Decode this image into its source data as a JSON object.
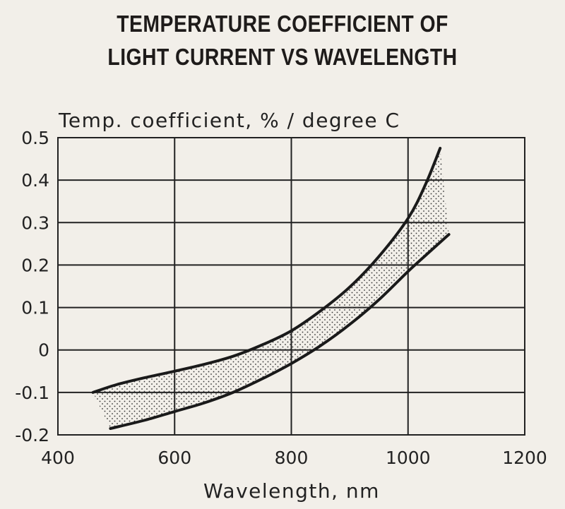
{
  "chart_data": {
    "type": "area",
    "title": [
      "TEMPERATURE COEFFICIENT OF",
      "LIGHT CURRENT VS WAVELENGTH"
    ],
    "ylabel": "Temp. coefficient, % / degree C",
    "xlabel": "Wavelength, nm",
    "xlim": [
      400,
      1200
    ],
    "ylim": [
      -0.2,
      0.5
    ],
    "xticks": [
      400,
      600,
      800,
      1000,
      1200
    ],
    "xtick_labels": [
      "400",
      "600",
      "800",
      "1000",
      "1200"
    ],
    "yticks": [
      0.5,
      0.4,
      0.3,
      0.2,
      0.1,
      0,
      -0.1,
      -0.2
    ],
    "ytick_labels": [
      "0.5",
      "0.4",
      "0.3",
      "0.2",
      "0.1",
      "0",
      "-0.1",
      "-0.2"
    ],
    "grid": true,
    "band_fill": "dotted",
    "series": [
      {
        "x": [
          460,
          500,
          550,
          600,
          650,
          700,
          750,
          800,
          850,
          900,
          950,
          1000,
          1030,
          1055
        ],
        "y": [
          -0.1,
          -0.082,
          -0.065,
          -0.05,
          -0.034,
          -0.015,
          0.012,
          0.045,
          0.092,
          0.148,
          0.22,
          0.31,
          0.39,
          0.475
        ]
      },
      {
        "x": [
          490,
          550,
          600,
          650,
          700,
          750,
          800,
          850,
          900,
          950,
          1000,
          1040,
          1070
        ],
        "y": [
          -0.185,
          -0.165,
          -0.145,
          -0.125,
          -0.1,
          -0.068,
          -0.032,
          0.01,
          0.06,
          0.118,
          0.185,
          0.235,
          0.272
        ]
      }
    ]
  }
}
